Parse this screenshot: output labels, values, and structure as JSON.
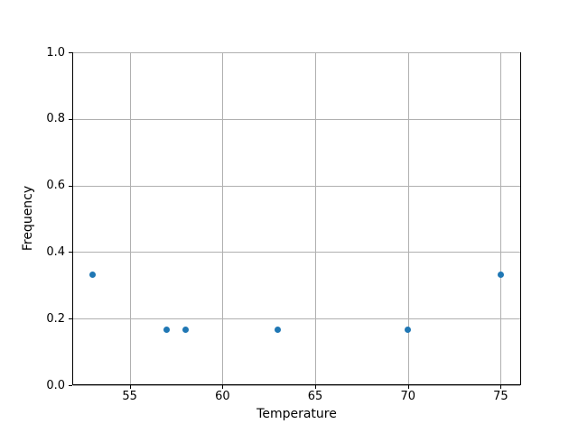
{
  "figure": {
    "background": "#ffffff"
  },
  "chart_data": {
    "type": "scatter",
    "title": "",
    "xlabel": "Temperature",
    "ylabel": "Frequency",
    "x": [
      53,
      57,
      58,
      63,
      70,
      75
    ],
    "y": [
      0.333,
      0.167,
      0.167,
      0.167,
      0.167,
      0.333
    ],
    "xlim": [
      51.9,
      76.1
    ],
    "ylim": [
      0.0,
      1.0
    ],
    "xticks": [
      55,
      60,
      65,
      70,
      75
    ],
    "xtick_labels": [
      "55",
      "60",
      "65",
      "70",
      "75"
    ],
    "yticks": [
      0.0,
      0.2,
      0.4,
      0.6,
      0.8,
      1.0
    ],
    "ytick_labels": [
      "0.0",
      "0.2",
      "0.4",
      "0.6",
      "0.8",
      "1.0"
    ],
    "grid": true,
    "legend": false,
    "marker_color": "#1f77b4",
    "grid_color": "#b0b0b0",
    "spine_color": "#000000"
  }
}
